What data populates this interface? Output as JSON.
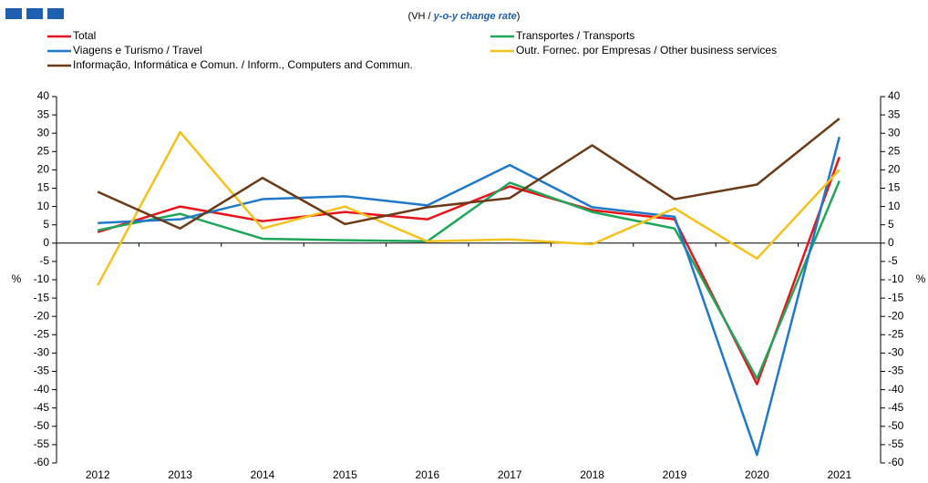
{
  "chart_data": {
    "type": "line",
    "subtitle": [
      "(VH / ",
      "y-o-y change rate",
      ")"
    ],
    "y_label": "%",
    "y2_label": "%",
    "categories": [
      "2012",
      "2013",
      "2014",
      "2015",
      "2016",
      "2017",
      "2018",
      "2019",
      "2020",
      "2021"
    ],
    "series": [
      {
        "name": "Total",
        "color": "#e8141c",
        "values": [
          3,
          10,
          6,
          8.5,
          6.5,
          15.5,
          9,
          6.5,
          -38.5,
          23.5
        ]
      },
      {
        "name": "Transportes / Transports",
        "color": "#1ea65a",
        "values": [
          3.5,
          8,
          1.2,
          0.8,
          0.5,
          16.5,
          8.5,
          4,
          -37,
          17
        ]
      },
      {
        "name": "Viagens e Turismo / Travel",
        "color": "#1f78c8",
        "values": [
          5.5,
          6.5,
          12,
          12.8,
          10.3,
          21.3,
          9.8,
          7.2,
          -57.8,
          29
        ]
      },
      {
        "name": "Outr. Fornec. por Empresas / Other business services",
        "color": "#f5c21b",
        "values": [
          -11.5,
          30.3,
          4,
          10,
          0.5,
          1,
          -0.3,
          9.5,
          -4.2,
          20
        ]
      },
      {
        "name": "Informação, Informática e Comun. / Inform., Computers and Commun.",
        "color": "#6b3a17",
        "values": [
          14,
          4,
          17.8,
          5.2,
          9.8,
          12.3,
          26.7,
          12,
          16,
          34
        ]
      }
    ],
    "ylim": [
      -60,
      40
    ],
    "yticks": [
      -60,
      -55,
      -50,
      -45,
      -40,
      -35,
      -30,
      -25,
      -20,
      -15,
      -10,
      -5,
      0,
      5,
      10,
      15,
      20,
      25,
      30,
      35,
      40
    ],
    "y2lim": [
      -60,
      40
    ],
    "y2ticks": [
      -60,
      -55,
      -50,
      -45,
      -40,
      -35,
      -30,
      -25,
      -20,
      -15,
      -10,
      -5,
      0,
      5,
      10,
      15,
      20,
      25,
      30,
      35,
      40
    ]
  }
}
